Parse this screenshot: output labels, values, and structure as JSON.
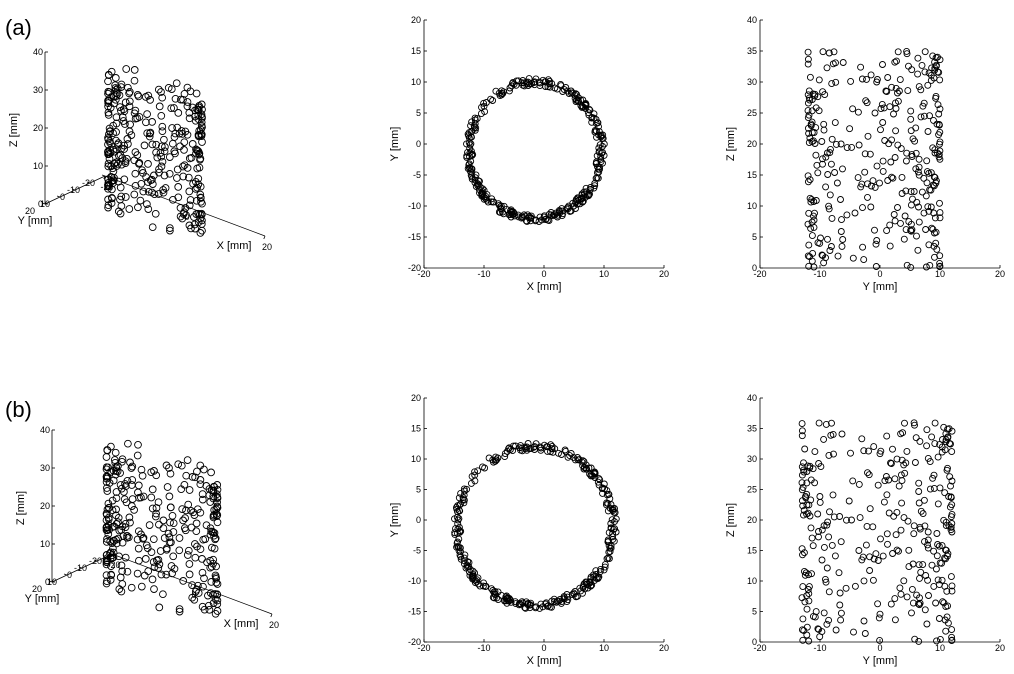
{
  "figure": {
    "panel_labels": [
      "(a)",
      "(b)"
    ],
    "marker": "open-circle",
    "marker_color": "#000000"
  },
  "chart_data": [
    {
      "id": "a-3d",
      "type": "scatter",
      "projection": "3d",
      "xlabel": "X [mm]",
      "ylabel": "Y [mm]",
      "zlabel": "Z [mm]",
      "xlim": [
        -20,
        20
      ],
      "ylim": [
        -20,
        20
      ],
      "zlim": [
        0,
        40
      ],
      "xticks": [
        "-20",
        "0",
        "20"
      ],
      "yticks": [
        "-20",
        "-10",
        "0",
        "10",
        "20"
      ],
      "zticks": [
        "0",
        "10",
        "20",
        "30",
        "40"
      ],
      "shape": "cylinder",
      "radius_mm": 11,
      "height_range_mm": [
        0,
        35
      ],
      "approx_points": 330
    },
    {
      "id": "a-xy",
      "type": "scatter",
      "xlabel": "X [mm]",
      "ylabel": "Y [mm]",
      "xlim": [
        -20,
        20
      ],
      "ylim": [
        -20,
        20
      ],
      "xticks": [
        "-20",
        "-10",
        "0",
        "10",
        "20"
      ],
      "yticks": [
        "-20",
        "-15",
        "-10",
        "-5",
        "0",
        "5",
        "10",
        "15",
        "20"
      ],
      "shape": "ring",
      "center_mm": [
        -1.5,
        -1
      ],
      "radius_mm": 11,
      "approx_points": 330
    },
    {
      "id": "a-yz",
      "type": "scatter",
      "xlabel": "Y [mm]",
      "ylabel": "Z [mm]",
      "xlim": [
        -20,
        20
      ],
      "ylim": [
        0,
        40
      ],
      "xticks": [
        "-20",
        "-10",
        "0",
        "10",
        "20"
      ],
      "yticks": [
        "0",
        "5",
        "10",
        "15",
        "20",
        "25",
        "30",
        "35",
        "40"
      ],
      "y_range_mm": [
        -12,
        10
      ],
      "z_range_mm": [
        0,
        35
      ],
      "approx_points": 330
    },
    {
      "id": "b-3d",
      "type": "scatter",
      "projection": "3d",
      "xlabel": "X [mm]",
      "ylabel": "Y [mm]",
      "zlabel": "Z [mm]",
      "xlim": [
        -20,
        20
      ],
      "ylim": [
        -20,
        20
      ],
      "zlim": [
        0,
        40
      ],
      "xticks": [
        "-20",
        "0",
        "20"
      ],
      "yticks": [
        "-20",
        "-10",
        "0",
        "10",
        "20"
      ],
      "zticks": [
        "0",
        "10",
        "20",
        "30",
        "40"
      ],
      "shape": "cylinder",
      "radius_mm": 13,
      "height_range_mm": [
        0,
        35
      ],
      "approx_points": 330
    },
    {
      "id": "b-xy",
      "type": "scatter",
      "xlabel": "X [mm]",
      "ylabel": "Y [mm]",
      "xlim": [
        -20,
        20
      ],
      "ylim": [
        -20,
        20
      ],
      "xticks": [
        "-20",
        "-10",
        "0",
        "10",
        "20"
      ],
      "yticks": [
        "-20",
        "-15",
        "-10",
        "-5",
        "0",
        "5",
        "10",
        "15",
        "20"
      ],
      "shape": "ring",
      "center_mm": [
        -1.5,
        -1
      ],
      "radius_mm": 13,
      "approx_points": 330
    },
    {
      "id": "b-yz",
      "type": "scatter",
      "xlabel": "Y [mm]",
      "ylabel": "Z [mm]",
      "xlim": [
        -20,
        20
      ],
      "ylim": [
        0,
        40
      ],
      "xticks": [
        "-20",
        "-10",
        "0",
        "10",
        "20"
      ],
      "yticks": [
        "0",
        "5",
        "10",
        "15",
        "20",
        "25",
        "30",
        "35",
        "40"
      ],
      "y_range_mm": [
        -13,
        12
      ],
      "z_range_mm": [
        0,
        36
      ],
      "approx_points": 330
    }
  ]
}
